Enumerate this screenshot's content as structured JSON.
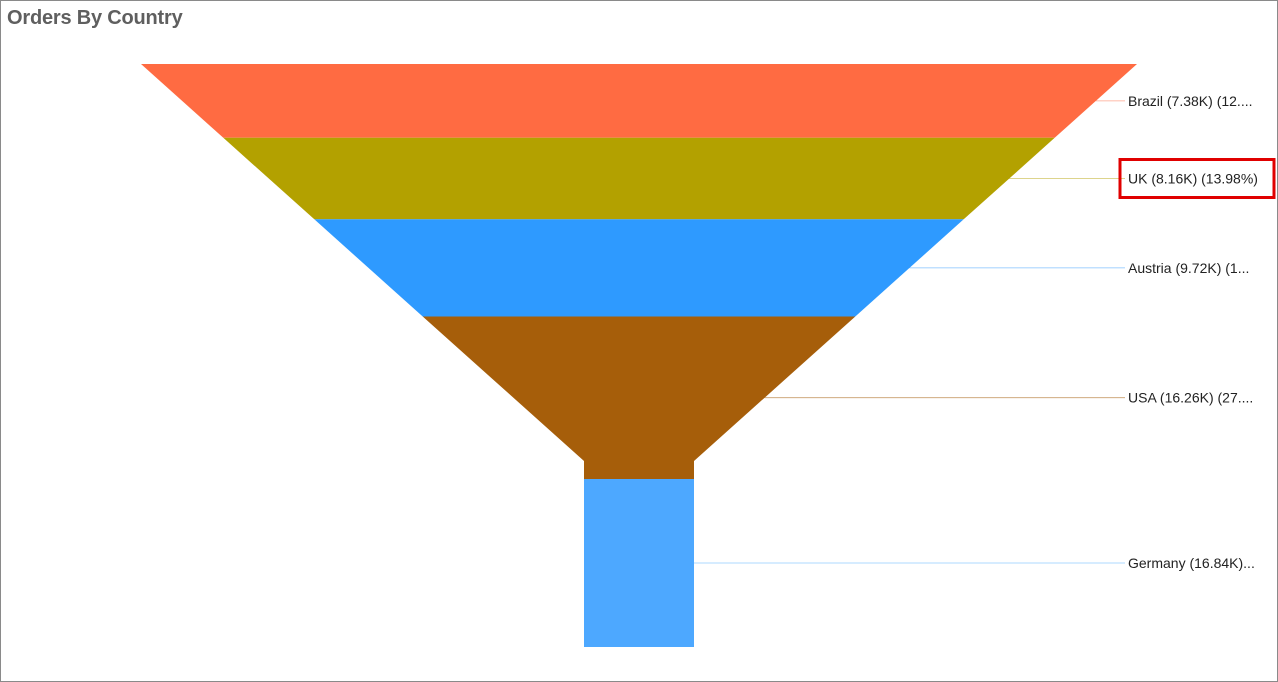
{
  "chart_data": {
    "type": "funnel",
    "title": "Orders By Country",
    "categories": [
      "Brazil",
      "UK",
      "Austria",
      "USA",
      "Germany"
    ],
    "values": [
      7.38,
      8.16,
      9.72,
      16.26,
      16.84
    ],
    "value_unit": "K",
    "colors": [
      "#ff6b42",
      "#b3a100",
      "#2e9aff",
      "#a65e0a",
      "#4da8ff"
    ],
    "labels": [
      "Brazil (7.38K) (12....",
      "UK (8.16K) (13.98%)",
      "Austria (9.72K) (1...",
      "USA (16.26K) (27....",
      "Germany (16.84K)..."
    ],
    "highlighted_label": "UK (8.16K) (13.98%)",
    "highlight_color": "#e00000"
  }
}
